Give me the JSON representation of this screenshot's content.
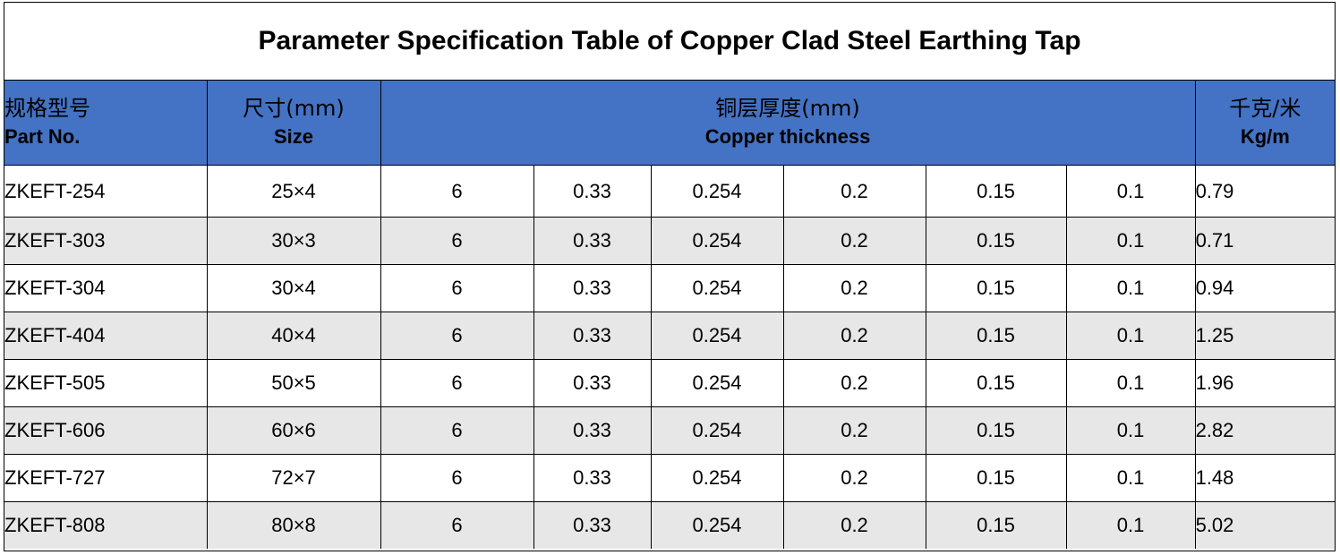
{
  "title": "Parameter Specification Table of Copper Clad Steel Earthing Tap",
  "colors": {
    "header_bg": "#4472c4",
    "row_alt_bg": "#e7e7e7",
    "border": "#000000"
  },
  "headers": {
    "part": {
      "zh": "规格型号",
      "en": "Part No."
    },
    "size": {
      "zh": "尺寸(mm)",
      "en": "Size"
    },
    "thickness": {
      "zh": "铜层厚度(mm)",
      "en": "Copper thickness"
    },
    "weight": {
      "zh": "千克/米",
      "en": "Kg/m"
    }
  },
  "rows": [
    {
      "part": "ZKEFT-254",
      "size": "25×4",
      "t": [
        "6",
        "0.33",
        "0.254",
        "0.2",
        "0.15",
        "0.1"
      ],
      "kg": "0.79"
    },
    {
      "part": "ZKEFT-303",
      "size": "30×3",
      "t": [
        "6",
        "0.33",
        "0.254",
        "0.2",
        "0.15",
        "0.1"
      ],
      "kg": "0.71"
    },
    {
      "part": "ZKEFT-304",
      "size": "30×4",
      "t": [
        "6",
        "0.33",
        "0.254",
        "0.2",
        "0.15",
        "0.1"
      ],
      "kg": "0.94"
    },
    {
      "part": "ZKEFT-404",
      "size": "40×4",
      "t": [
        "6",
        "0.33",
        "0.254",
        "0.2",
        "0.15",
        "0.1"
      ],
      "kg": "1.25"
    },
    {
      "part": "ZKEFT-505",
      "size": "50×5",
      "t": [
        "6",
        "0.33",
        "0.254",
        "0.2",
        "0.15",
        "0.1"
      ],
      "kg": "1.96"
    },
    {
      "part": "ZKEFT-606",
      "size": "60×6",
      "t": [
        "6",
        "0.33",
        "0.254",
        "0.2",
        "0.15",
        "0.1"
      ],
      "kg": "2.82"
    },
    {
      "part": "ZKEFT-727",
      "size": "72×7",
      "t": [
        "6",
        "0.33",
        "0.254",
        "0.2",
        "0.15",
        "0.1"
      ],
      "kg": "1.48"
    },
    {
      "part": "ZKEFT-808",
      "size": "80×8",
      "t": [
        "6",
        "0.33",
        "0.254",
        "0.2",
        "0.15",
        "0.1"
      ],
      "kg": "5.02"
    }
  ]
}
